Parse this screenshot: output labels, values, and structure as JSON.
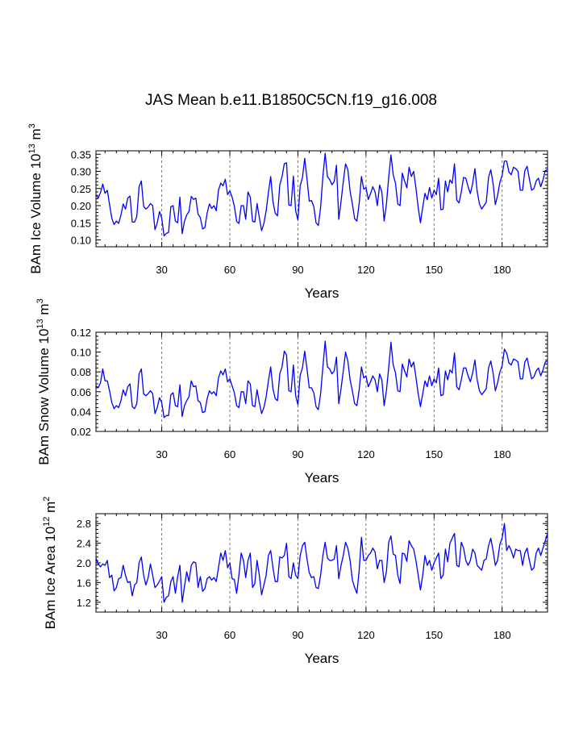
{
  "figure": {
    "title": "JAS Mean b.e11.B1850C5CN.f19_g16.008"
  },
  "chart_data": [
    {
      "type": "line",
      "ylabel_parts": [
        "BAm Ice Volume 10",
        "13",
        " m",
        "3"
      ],
      "xlabel": "Years",
      "xlim": [
        1,
        200
      ],
      "ylim": [
        0.08,
        0.36
      ],
      "xticks": [
        30,
        60,
        90,
        120,
        150,
        180
      ],
      "yticks": [
        0.1,
        0.15,
        0.2,
        0.25,
        0.3,
        0.35
      ],
      "ytick_labels": [
        "0.10",
        "0.15",
        "0.20",
        "0.25",
        "0.30",
        "0.35"
      ],
      "yminor_step": 0.01,
      "gridlines_x": [
        30,
        60,
        90,
        120,
        150,
        180
      ],
      "series": [
        {
          "name": "BAm Ice Volume",
          "color": "#0000ff",
          "values": [
            0.232,
            0.222,
            0.238,
            0.263,
            0.236,
            0.245,
            0.203,
            0.163,
            0.145,
            0.155,
            0.148,
            0.172,
            0.205,
            0.19,
            0.222,
            0.228,
            0.152,
            0.152,
            0.168,
            0.255,
            0.272,
            0.198,
            0.19,
            0.196,
            0.206,
            0.2,
            0.13,
            0.149,
            0.183,
            0.163,
            0.112,
            0.119,
            0.122,
            0.197,
            0.2,
            0.155,
            0.15,
            0.225,
            0.118,
            0.154,
            0.173,
            0.183,
            0.227,
            0.218,
            0.222,
            0.175,
            0.165,
            0.132,
            0.136,
            0.178,
            0.205,
            0.192,
            0.2,
            0.185,
            0.245,
            0.266,
            0.258,
            0.277,
            0.232,
            0.243,
            0.225,
            0.198,
            0.154,
            0.148,
            0.2,
            0.2,
            0.16,
            0.24,
            0.225,
            0.155,
            0.152,
            0.206,
            0.165,
            0.127,
            0.148,
            0.185,
            0.238,
            0.285,
            0.212,
            0.178,
            0.17,
            0.26,
            0.285,
            0.322,
            0.325,
            0.202,
            0.2,
            0.286,
            0.185,
            0.158,
            0.258,
            0.282,
            0.338,
            0.278,
            0.213,
            0.215,
            0.197,
            0.15,
            0.142,
            0.195,
            0.285,
            0.353,
            0.285,
            0.276,
            0.261,
            0.27,
            0.318,
            0.16,
            0.212,
            0.27,
            0.322,
            0.305,
            0.242,
            0.205,
            0.162,
            0.155,
            0.207,
            0.285,
            0.248,
            0.253,
            0.218,
            0.235,
            0.255,
            0.24,
            0.2,
            0.26,
            0.24,
            0.155,
            0.204,
            0.282,
            0.348,
            0.29,
            0.265,
            0.205,
            0.2,
            0.295,
            0.272,
            0.252,
            0.312,
            0.285,
            0.3,
            0.252,
            0.195,
            0.15,
            0.195,
            0.236,
            0.217,
            0.253,
            0.222,
            0.245,
            0.232,
            0.28,
            0.188,
            0.19,
            0.272,
            0.24,
            0.275,
            0.265,
            0.322,
            0.216,
            0.208,
            0.24,
            0.282,
            0.28,
            0.255,
            0.235,
            0.265,
            0.308,
            0.242,
            0.205,
            0.19,
            0.2,
            0.21,
            0.282,
            0.305,
            0.265,
            0.203,
            0.23,
            0.268,
            0.288,
            0.33,
            0.33,
            0.298,
            0.29,
            0.312,
            0.308,
            0.3,
            0.245,
            0.245,
            0.302,
            0.315,
            0.278,
            0.245,
            0.25,
            0.272,
            0.28,
            0.255,
            0.275,
            0.302,
            0.305
          ]
        }
      ]
    },
    {
      "type": "line",
      "ylabel_parts": [
        "BAm Snow Volume 10",
        "13",
        " m",
        "3"
      ],
      "xlabel": "Years",
      "xlim": [
        1,
        200
      ],
      "ylim": [
        0.02,
        0.12
      ],
      "xticks": [
        30,
        60,
        90,
        120,
        150,
        180
      ],
      "yticks": [
        0.02,
        0.04,
        0.06,
        0.08,
        0.1,
        0.12
      ],
      "ytick_labels": [
        "0.02",
        "0.04",
        "0.06",
        "0.08",
        "0.10",
        "0.12"
      ],
      "yminor_step": 0.004,
      "gridlines_x": [
        30,
        60,
        90,
        120,
        150,
        180
      ],
      "series": [
        {
          "name": "BAm Snow Volume",
          "color": "#0000ff",
          "values": [
            0.066,
            0.064,
            0.069,
            0.083,
            0.071,
            0.071,
            0.061,
            0.049,
            0.043,
            0.046,
            0.044,
            0.051,
            0.062,
            0.056,
            0.065,
            0.068,
            0.045,
            0.043,
            0.048,
            0.078,
            0.083,
            0.058,
            0.056,
            0.058,
            0.061,
            0.058,
            0.038,
            0.044,
            0.054,
            0.049,
            0.034,
            0.036,
            0.036,
            0.057,
            0.059,
            0.046,
            0.045,
            0.067,
            0.035,
            0.046,
            0.051,
            0.055,
            0.071,
            0.065,
            0.066,
            0.051,
            0.049,
            0.039,
            0.04,
            0.053,
            0.061,
            0.058,
            0.06,
            0.056,
            0.074,
            0.081,
            0.077,
            0.083,
            0.07,
            0.073,
            0.066,
            0.059,
            0.046,
            0.044,
            0.06,
            0.06,
            0.048,
            0.071,
            0.068,
            0.046,
            0.045,
            0.062,
            0.049,
            0.038,
            0.044,
            0.055,
            0.071,
            0.085,
            0.063,
            0.053,
            0.051,
            0.078,
            0.085,
            0.101,
            0.097,
            0.061,
            0.06,
            0.087,
            0.056,
            0.047,
            0.077,
            0.084,
            0.101,
            0.083,
            0.064,
            0.064,
            0.059,
            0.045,
            0.042,
            0.058,
            0.085,
            0.111,
            0.085,
            0.083,
            0.078,
            0.081,
            0.095,
            0.048,
            0.063,
            0.081,
            0.1,
            0.091,
            0.072,
            0.061,
            0.048,
            0.046,
            0.062,
            0.085,
            0.074,
            0.076,
            0.065,
            0.07,
            0.076,
            0.072,
            0.06,
            0.078,
            0.072,
            0.046,
            0.061,
            0.084,
            0.11,
            0.087,
            0.079,
            0.061,
            0.06,
            0.088,
            0.081,
            0.075,
            0.093,
            0.085,
            0.09,
            0.075,
            0.058,
            0.045,
            0.058,
            0.071,
            0.065,
            0.076,
            0.066,
            0.073,
            0.069,
            0.084,
            0.056,
            0.057,
            0.081,
            0.072,
            0.082,
            0.079,
            0.099,
            0.065,
            0.062,
            0.072,
            0.084,
            0.084,
            0.076,
            0.07,
            0.079,
            0.092,
            0.072,
            0.061,
            0.057,
            0.06,
            0.063,
            0.084,
            0.091,
            0.079,
            0.061,
            0.069,
            0.08,
            0.086,
            0.103,
            0.099,
            0.089,
            0.087,
            0.093,
            0.092,
            0.09,
            0.073,
            0.073,
            0.09,
            0.094,
            0.083,
            0.073,
            0.075,
            0.081,
            0.084,
            0.076,
            0.082,
            0.09,
            0.091
          ]
        }
      ]
    },
    {
      "type": "line",
      "ylabel_parts": [
        "BAm Ice Area 10",
        "12",
        " m",
        "2"
      ],
      "xlabel": "Years",
      "xlim": [
        1,
        200
      ],
      "ylim": [
        1.0,
        3.0
      ],
      "xticks": [
        30,
        60,
        90,
        120,
        150,
        180
      ],
      "yticks": [
        1.2,
        1.6,
        2.0,
        2.4,
        2.8
      ],
      "ytick_labels": [
        "1.2",
        "1.6",
        "2.0",
        "2.4",
        "2.8"
      ],
      "yminor_step": 0.08,
      "gridlines_x": [
        30,
        60,
        90,
        120,
        150,
        180
      ],
      "series": [
        {
          "name": "BAm Ice Area",
          "color": "#0000ff",
          "values": [
            2.1,
            1.98,
            1.92,
            1.98,
            1.95,
            2.05,
            1.7,
            1.75,
            1.43,
            1.5,
            1.68,
            1.7,
            1.95,
            1.75,
            1.6,
            1.62,
            1.33,
            1.55,
            1.6,
            2.0,
            2.12,
            1.75,
            1.55,
            1.7,
            1.98,
            1.75,
            1.5,
            1.55,
            1.63,
            1.72,
            1.2,
            1.3,
            1.33,
            1.62,
            1.72,
            1.38,
            1.72,
            1.95,
            1.2,
            1.52,
            1.82,
            1.62,
            1.95,
            2.02,
            2.0,
            1.5,
            1.72,
            1.42,
            1.48,
            1.68,
            1.72,
            1.65,
            1.7,
            1.62,
            1.9,
            2.2,
            2.05,
            2.25,
            1.9,
            2.0,
            1.68,
            1.66,
            1.38,
            1.75,
            2.2,
            2.05,
            1.7,
            2.05,
            2.2,
            1.5,
            1.58,
            2.05,
            1.75,
            1.35,
            1.55,
            1.75,
            2.15,
            2.25,
            1.9,
            1.62,
            1.62,
            2.12,
            2.1,
            2.15,
            2.4,
            1.72,
            1.68,
            2.0,
            1.75,
            1.68,
            2.15,
            2.35,
            2.42,
            2.08,
            1.8,
            1.7,
            1.72,
            1.5,
            1.48,
            1.75,
            2.15,
            2.42,
            2.1,
            2.05,
            2.05,
            2.08,
            2.35,
            1.68,
            1.95,
            2.15,
            2.42,
            2.3,
            2.05,
            1.65,
            1.5,
            1.38,
            1.85,
            2.52,
            2.05,
            2.05,
            2.15,
            2.2,
            2.3,
            2.22,
            1.88,
            2.05,
            2.05,
            1.6,
            1.82,
            2.42,
            2.55,
            2.18,
            2.15,
            1.75,
            1.58,
            2.2,
            2.18,
            2.03,
            2.45,
            2.35,
            2.28,
            2.05,
            1.75,
            1.45,
            1.75,
            2.15,
            1.95,
            2.05,
            1.85,
            2.0,
            2.1,
            2.2,
            1.68,
            1.75,
            2.28,
            2.02,
            2.4,
            2.5,
            2.6,
            1.95,
            1.92,
            2.42,
            2.3,
            2.05,
            1.95,
            2.05,
            2.28,
            2.2,
            1.95,
            1.9,
            1.85,
            2.05,
            2.08,
            2.35,
            2.5,
            2.25,
            1.95,
            2.05,
            2.38,
            2.5,
            2.8,
            2.25,
            2.35,
            2.25,
            2.1,
            2.28,
            2.25,
            2.25,
            1.95,
            2.2,
            2.3,
            2.05,
            1.85,
            1.9,
            2.2,
            2.3,
            2.15,
            2.3,
            2.45,
            2.6
          ]
        }
      ]
    }
  ]
}
